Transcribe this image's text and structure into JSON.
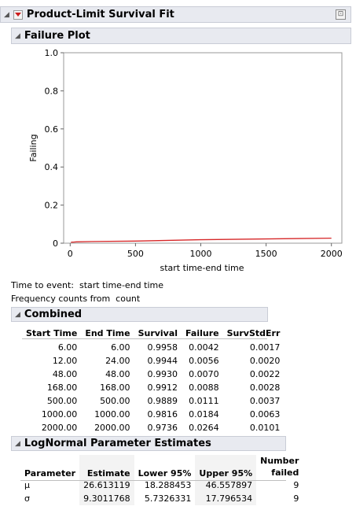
{
  "report": {
    "title": "Product-Limit Survival Fit"
  },
  "failure_plot": {
    "title": "Failure Plot"
  },
  "chart_data": {
    "type": "line",
    "xlabel": "start time-end time",
    "ylabel": "Failing",
    "xlim": [
      -50,
      2080
    ],
    "ylim": [
      0,
      1.0
    ],
    "xticks": [
      "0",
      "500",
      "1000",
      "1500",
      "2000"
    ],
    "yticks": [
      "0",
      "0.2",
      "0.4",
      "0.6",
      "0.8",
      "1.0"
    ],
    "series": [
      {
        "color": "#d62728",
        "x": [
          6,
          12,
          24,
          48,
          168,
          500,
          1000,
          2000
        ],
        "y": [
          0.0042,
          0.0056,
          0.0056,
          0.007,
          0.0088,
          0.0111,
          0.0184,
          0.0264
        ]
      }
    ]
  },
  "notes": {
    "time_to_event": "Time to event:  start time-end time",
    "frequency": "Frequency counts from  count"
  },
  "combined": {
    "title": "Combined",
    "headers": [
      "Start Time",
      "End Time",
      "Survival",
      "Failure",
      "SurvStdErr"
    ],
    "rows": [
      [
        "6.00",
        "6.00",
        "0.9958",
        "0.0042",
        "0.0017"
      ],
      [
        "12.00",
        "24.00",
        "0.9944",
        "0.0056",
        "0.0020"
      ],
      [
        "48.00",
        "48.00",
        "0.9930",
        "0.0070",
        "0.0022"
      ],
      [
        "168.00",
        "168.00",
        "0.9912",
        "0.0088",
        "0.0028"
      ],
      [
        "500.00",
        "500.00",
        "0.9889",
        "0.0111",
        "0.0037"
      ],
      [
        "1000.00",
        "1000.00",
        "0.9816",
        "0.0184",
        "0.0063"
      ],
      [
        "2000.00",
        "2000.00",
        "0.9736",
        "0.0264",
        "0.0101"
      ]
    ]
  },
  "lognormal": {
    "title": "LogNormal Parameter Estimates",
    "headers": [
      "Parameter",
      "Estimate",
      "Lower 95%",
      "Upper 95%",
      "Number",
      "failed"
    ],
    "rows": [
      [
        "μ",
        "26.613119",
        "18.288453",
        "46.557897",
        "9"
      ],
      [
        "σ",
        "9.3011768",
        "5.7326331",
        "17.796534",
        "9"
      ]
    ]
  }
}
